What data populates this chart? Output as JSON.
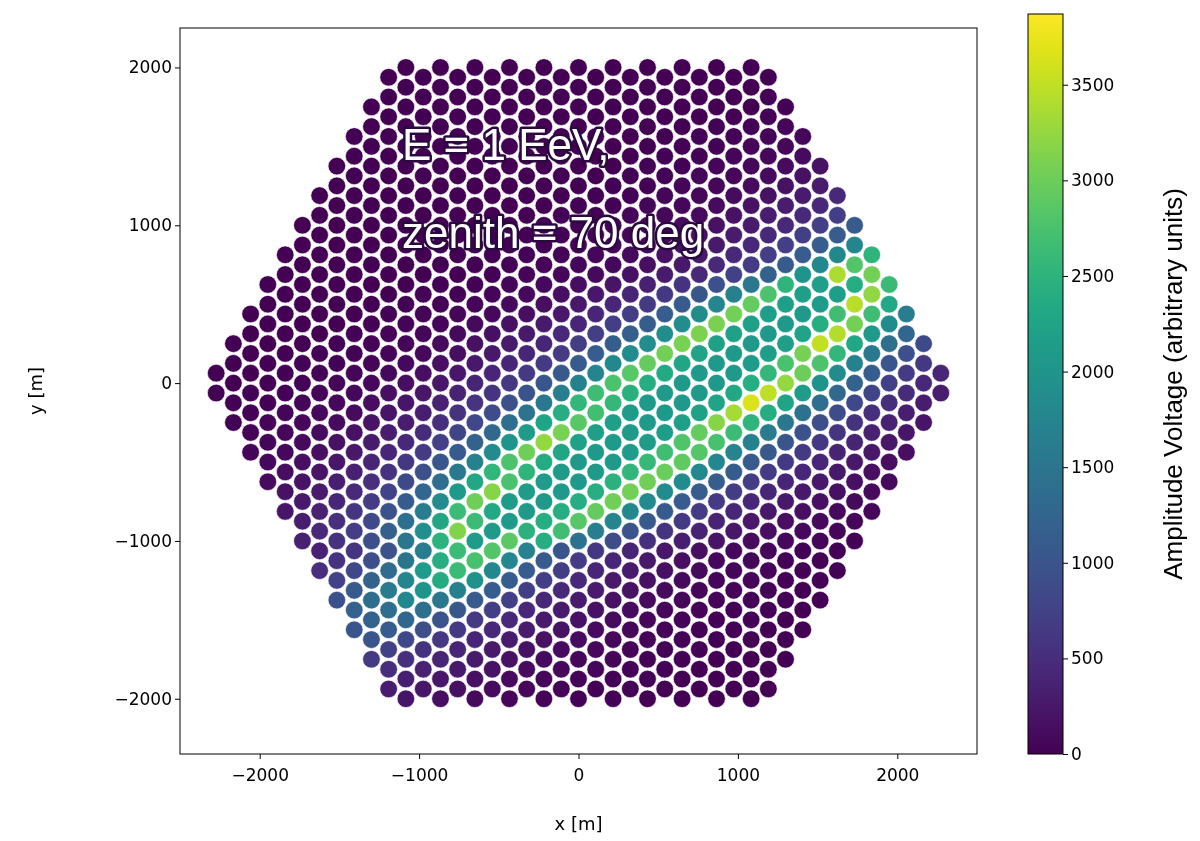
{
  "chart_data": {
    "type": "scatter",
    "xlabel": "x [m]",
    "ylabel": "y [m]",
    "clabel": "Amplitude Voltage (arbitrary units)",
    "marker": "circle",
    "annotations": [
      "E = 1 EeV,",
      "zenith = 70 deg"
    ],
    "xlim": [
      -2500,
      2500
    ],
    "ylim": [
      -2350,
      2250
    ],
    "xticks": [
      {
        "value": -2000,
        "label": "−2000"
      },
      {
        "value": -1000,
        "label": "−1000"
      },
      0,
      1000,
      2000
    ],
    "yticks": [
      {
        "value": -2000,
        "label": "−2000"
      },
      {
        "value": -1000,
        "label": "−1000"
      },
      0,
      1000,
      2000
    ],
    "clim": [
      0,
      3870
    ],
    "cticks": [
      0,
      500,
      1000,
      1500,
      2000,
      2500,
      3000,
      3500
    ],
    "x": [
      -1083,
      -866,
      -650,
      -433,
      -217,
      0,
      217,
      433,
      650,
      866,
      1083,
      -1191,
      -974,
      -758,
      -541,
      -325,
      -108,
      108,
      325,
      541,
      758,
      974,
      1191,
      -1083,
      -866,
      -650,
      -433,
      -217,
      0,
      217,
      433,
      650,
      866,
      1083,
      -1191,
      -974,
      -758,
      -541,
      -325,
      -108,
      108,
      325,
      541,
      758,
      974,
      1191,
      -1299,
      -1083,
      -866,
      -650,
      -433,
      -217,
      0,
      217,
      433,
      650,
      866,
      1083,
      1299,
      -1191,
      -974,
      -758,
      -541,
      -325,
      -108,
      108,
      325,
      541,
      758,
      974,
      1191,
      -1299,
      -1083,
      -866,
      -650,
      -433,
      -217,
      0,
      217,
      433,
      650,
      866,
      1083,
      1299,
      -1407,
      -1191,
      -974,
      -758,
      -541,
      -325,
      -108,
      108,
      325,
      541,
      758,
      974,
      1191,
      1407,
      -1299,
      -1083,
      -866,
      -650,
      -433,
      -217,
      0,
      217,
      433,
      650,
      866,
      1083,
      1299,
      -1407,
      -1191,
      -974,
      -758,
      -541,
      -325,
      -108,
      108,
      325,
      541,
      758,
      974,
      1191,
      1407,
      -1516,
      -1299,
      -1083,
      -866,
      -650,
      -433,
      -217,
      0,
      217,
      433,
      650,
      866,
      1083,
      1299,
      1516,
      -1407,
      -1191,
      -974,
      -758,
      -541,
      -325,
      -108,
      108,
      325,
      541,
      758,
      974,
      1191,
      1407,
      -1516,
      -1299,
      -1083,
      -866,
      -650,
      -433,
      -217,
      0,
      217,
      433,
      650,
      866,
      1083,
      1299,
      1516,
      -1624,
      -1407,
      -1191,
      -974,
      -758,
      -541,
      -325,
      -108,
      108,
      325,
      541,
      758,
      974,
      1191,
      1407,
      1624,
      -1516,
      -1299,
      -1083,
      -866,
      -650,
      -433,
      -217,
      0,
      217,
      433,
      650,
      866,
      1083,
      1299,
      1516,
      -1624,
      -1407,
      -1191,
      -974,
      -758,
      -541,
      -325,
      -108,
      108,
      325,
      541,
      758,
      974,
      1191,
      1407,
      1624,
      -1732,
      -1516,
      -1299,
      -1083,
      -866,
      -650,
      -433,
      -217,
      0,
      217,
      433,
      650,
      866,
      1083,
      1299,
      1516,
      1732,
      -1624,
      -1407,
      -1191,
      -974,
      -758,
      -541,
      -325,
      -108,
      108,
      325,
      541,
      758,
      974,
      1191,
      1407,
      1624,
      -1732,
      -1516,
      -1299,
      -1083,
      -866,
      -650,
      -433,
      -217,
      0,
      217,
      433,
      650,
      866,
      1083,
      1299,
      1516,
      1732,
      -1840,
      -1624,
      -1407,
      -1191,
      -974,
      -758,
      -541,
      -325,
      -108,
      108,
      325,
      541,
      758,
      974,
      1191,
      1407,
      1624,
      1840,
      -1732,
      -1516,
      -1299,
      -1083,
      -866,
      -650,
      -433,
      -217,
      0,
      217,
      433,
      650,
      866,
      1083,
      1299,
      1516,
      1732,
      -1840,
      -1624,
      -1407,
      -1191,
      -974,
      -758,
      -541,
      -325,
      -108,
      108,
      325,
      541,
      758,
      974,
      1191,
      1407,
      1624,
      1840,
      -1949,
      -1732,
      -1516,
      -1299,
      -1083,
      -866,
      -650,
      -433,
      -217,
      0,
      217,
      433,
      650,
      866,
      1083,
      1299,
      1516,
      1732,
      1949,
      -1840,
      -1624,
      -1407,
      -1191,
      -974,
      -758,
      -541,
      -325,
      -108,
      108,
      325,
      541,
      758,
      974,
      1191,
      1407,
      1624,
      1840,
      -1949,
      -1732,
      -1516,
      -1299,
      -1083,
      -866,
      -650,
      -433,
      -217,
      0,
      217,
      433,
      650,
      866,
      1083,
      1299,
      1516,
      1732,
      1949,
      -2057,
      -1840,
      -1624,
      -1407,
      -1191,
      -974,
      -758,
      -541,
      -325,
      -108,
      108,
      325,
      541,
      758,
      974,
      1191,
      1407,
      1624,
      1840,
      2057,
      -1949,
      -1732,
      -1516,
      -1299,
      -1083,
      -866,
      -650,
      -433,
      -217,
      0,
      217,
      433,
      650,
      866,
      1083,
      1299,
      1516,
      1732,
      1949,
      -2057,
      -1840,
      -1624,
      -1407,
      -1191,
      -974,
      -758,
      -541,
      -325,
      -108,
      108,
      325,
      541,
      758,
      974,
      1191,
      1407,
      1624,
      1840,
      2057,
      -2165,
      -1949,
      -1732,
      -1516,
      -1299,
      -1083,
      -866,
      -650,
      -433,
      -217,
      0,
      217,
      433,
      650,
      866,
      1083,
      1299,
      1516,
      1732,
      1949,
      2165,
      -2057,
      -1840,
      -1624,
      -1407,
      -1191,
      -974,
      -758,
      -541,
      -325,
      -108,
      108,
      325,
      541,
      758,
      974,
      1191,
      1407,
      1624,
      1840,
      2057,
      -2165,
      -1949,
      -1732,
      -1516,
      -1299,
      -1083,
      -866,
      -650,
      -433,
      -217,
      0,
      217,
      433,
      650,
      866,
      1083,
      1299,
      1516,
      1732,
      1949,
      2165,
      -2273,
      -2057,
      -1840,
      -1624,
      -1407,
      -1191,
      -974,
      -758,
      -541,
      -325,
      -108,
      108,
      325,
      541,
      758,
      974,
      1191,
      1407,
      1624,
      1840,
      2057,
      2273,
      -2165,
      -1949,
      -1732,
      -1516,
      -1299,
      -1083,
      -866,
      -650,
      -433,
      -217,
      0,
      217,
      433,
      650,
      866,
      1083,
      1299,
      1516,
      1732,
      1949,
      2165,
      -2273,
      -2057,
      -1840,
      -1624,
      -1407,
      -1191,
      -974,
      -758,
      -541,
      -325,
      -108,
      108,
      325,
      541,
      758,
      974,
      1191,
      1407,
      1624,
      1840,
      2057,
      2273,
      -2165,
      -1949,
      -1732,
      -1516,
      -1299,
      -1083,
      -866,
      -650,
      -433,
      -217,
      0,
      217,
      433,
      650,
      866,
      1083,
      1299,
      1516,
      1732,
      1949,
      2165,
      -2057,
      -1840,
      -1624,
      -1407,
      -1191,
      -974,
      -758,
      -541,
      -325,
      -108,
      108,
      325,
      541,
      758,
      974,
      1191,
      1407,
      1624,
      1840,
      2057,
      -2165,
      -1949,
      -1732,
      -1516,
      -1299,
      -1083,
      -866,
      -650,
      -433,
      -217,
      0,
      217,
      433,
      650,
      866,
      1083,
      1299,
      1516,
      1732,
      1949,
      2165,
      -2057,
      -1840,
      -1624,
      -1407,
      -1191,
      -974,
      -758,
      -541,
      -325,
      -108,
      108,
      325,
      541,
      758,
      974,
      1191,
      1407,
      1624,
      1840,
      2057,
      -1949,
      -1732,
      -1516,
      -1299,
      -1083,
      -866,
      -650,
      -433,
      -217,
      0,
      217,
      433,
      650,
      866,
      1083,
      1299,
      1516,
      1732,
      1949,
      -2057,
      -1840,
      -1624,
      -1407,
      -1191,
      -974,
      -758,
      -541,
      -325,
      -108,
      108,
      325,
      541,
      758,
      974,
      1191,
      1407,
      1624,
      1840,
      2057,
      -1949,
      -1732,
      -1516,
      -1299,
      -1083,
      -866,
      -650,
      -433,
      -217,
      0,
      217,
      433,
      650,
      866,
      1083,
      1299,
      1516,
      1732,
      1949,
      -1840,
      -1624,
      -1407,
      -1191,
      -974,
      -758,
      -541,
      -325,
      -108,
      108,
      325,
      541,
      758,
      974,
      1191,
      1407,
      1624,
      1840,
      -1949,
      -1732,
      -1516,
      -1299,
      -1083,
      -866,
      -650,
      -433,
      -217,
      0,
      217,
      433,
      650,
      866,
      1083,
      1299,
      1516,
      1732,
      1949,
      -1840,
      -1624,
      -1407,
      -1191,
      -974,
      -758,
      -541,
      -325,
      -108,
      108,
      325,
      541,
      758,
      974,
      1191,
      1407,
      1624,
      1840,
      -1732,
      -1516,
      -1299,
      -1083,
      -866,
      -650,
      -433,
      -217,
      0,
      217,
      433,
      650,
      866,
      1083,
      1299,
      1516,
      1732,
      -1840,
      -1624,
      -1407,
      -1191,
      -974,
      -758,
      -541,
      -325,
      -108,
      108,
      325,
      541,
      758,
      974,
      1191,
      1407,
      1624,
      1840,
      -1732,
      -1516,
      -1299,
      -1083,
      -866,
      -650,
      -433,
      -217,
      0,
      217,
      433,
      650,
      866,
      1083,
      1299,
      1516,
      1732,
      -1624,
      -1407,
      -1191,
      -974,
      -758,
      -541,
      -325,
      -108,
      108,
      325,
      541,
      758,
      974,
      1191,
      1407,
      1624,
      -1732,
      -1516,
      -1299,
      -1083,
      -866,
      -650,
      -433,
      -217,
      0,
      217,
      433,
      650,
      866,
      1083,
      1299,
      1516,
      1732,
      -1624,
      -1407,
      -1191,
      -974,
      -758,
      -541,
      -325,
      -108,
      108,
      325,
      541,
      758,
      974,
      1191,
      1407,
      1624,
      -1516,
      -1299,
      -1083,
      -866,
      -650,
      -433,
      -217,
      0,
      217,
      433,
      650,
      866,
      1083,
      1299,
      1516,
      -1624,
      -1407,
      -1191,
      -974,
      -758,
      -541,
      -325,
      -108,
      108,
      325,
      541,
      758,
      974,
      1191,
      1407,
      1624,
      -1516,
      -1299,
      -1083,
      -866,
      -650,
      -433,
      -217,
      0,
      217,
      433,
      650,
      866,
      1083,
      1299,
      1516,
      -1407,
      -1191,
      -974,
      -758,
      -541,
      -325,
      -108,
      108,
      325,
      541,
      758,
      974,
      1191,
      1407,
      -1516,
      -1299,
      -1083,
      -866,
      -650,
      -433,
      -217,
      0,
      217,
      433,
      650,
      866,
      1083,
      1299,
      1516,
      -1407,
      -1191,
      -974,
      -758,
      -541,
      -325,
      -108,
      108,
      325,
      541,
      758,
      974,
      1191,
      1407,
      -1299,
      -1083,
      -866,
      -650,
      -433,
      -217,
      0,
      217,
      433,
      650,
      866,
      1083,
      1299,
      -1407,
      -1191,
      -974,
      -758,
      -541,
      -325,
      -108,
      108,
      325,
      541,
      758,
      974,
      1191,
      1407,
      -1299,
      -1083,
      -866,
      -650,
      -433,
      -217,
      0,
      217,
      433,
      650,
      866,
      1083,
      1299,
      -1191,
      -974,
      -758,
      -541,
      -325,
      -108,
      108,
      325,
      541,
      758,
      974,
      1191,
      -1299,
      -1083,
      -866,
      -650,
      -433,
      -217,
      0,
      217,
      433,
      650,
      866,
      1083,
      1299,
      -1191,
      -974,
      -758,
      -541,
      -325,
      -108,
      108,
      325,
      541,
      758,
      974,
      1191,
      -1083,
      -866,
      -650,
      -433,
      -217,
      0,
      217,
      433,
      650,
      866,
      1083,
      -1191,
      -974,
      -758,
      -541,
      -325,
      -108,
      108,
      325,
      541,
      758,
      974,
      1191,
      -1083,
      -866,
      -650,
      -433,
      -217,
      0,
      217,
      433,
      650,
      866,
      1083
    ],
    "values": [
      2000,
      2000,
      2000,
      2000,
      2000,
      2000,
      2000,
      2000,
      2000,
      2000,
      2000,
      1938,
      1938,
      1938,
      1938,
      1938,
      1938,
      1938,
      1938,
      1938,
      1938,
      1938,
      1938,
      1875,
      1875,
      1875,
      1875,
      1875,
      1875,
      1875,
      1875,
      1875,
      1875,
      1875,
      1813,
      1813,
      1813,
      1813,
      1813,
      1813,
      1813,
      1813,
      1813,
      1813,
      1813,
      1813,
      1750,
      1750,
      1750,
      1750,
      1750,
      1750,
      1750,
      1750,
      1750,
      1750,
      1750,
      1750,
      1750,
      1688,
      1688,
      1688,
      1688,
      1688,
      1688,
      1688,
      1688,
      1688,
      1688,
      1688,
      1688,
      1625,
      1625,
      1625,
      1625,
      1625,
      1625,
      1625,
      1625,
      1625,
      1625,
      1625,
      1625,
      1625,
      1563,
      1563,
      1563,
      1563,
      1563,
      1563,
      1563,
      1563,
      1563,
      1563,
      1563,
      1563,
      1563,
      1563,
      1500,
      1500,
      1500,
      1500,
      1500,
      1500,
      1500,
      1500,
      1500,
      1500,
      1500,
      1500,
      1500,
      1438,
      1438,
      1438,
      1438,
      1438,
      1438,
      1438,
      1438,
      1438,
      1438,
      1438,
      1438,
      1438,
      1438,
      1375,
      1375,
      1375,
      1375,
      1375,
      1375,
      1375,
      1375,
      1375,
      1375,
      1375,
      1375,
      1375,
      1375,
      1375,
      1313,
      1313,
      1313,
      1313,
      1313,
      1313,
      1313,
      1313,
      1313,
      1313,
      1313,
      1313,
      1313,
      1313,
      1250,
      1250,
      1250,
      1250,
      1250,
      1250,
      1250,
      1250,
      1250,
      1250,
      1250,
      1250,
      1250,
      1250,
      1250,
      1188,
      1188,
      1188,
      1188,
      1188,
      1188,
      1188,
      1188,
      1188,
      1188,
      1188,
      1188,
      1188,
      1188,
      1188,
      1188,
      1125,
      1125,
      1125,
      1125,
      1125,
      1125,
      1125,
      1125,
      1125,
      1125,
      1125,
      1125,
      1125,
      1125,
      1125,
      1063,
      1063,
      1063,
      1063,
      1063,
      1063,
      1063,
      1063,
      1063,
      1063,
      1063,
      1063,
      1063,
      1063,
      1063,
      1063,
      1000,
      1000,
      1000,
      1000,
      1000,
      1000,
      1000,
      1000,
      1000,
      1000,
      1000,
      1000,
      1000,
      1000,
      1000,
      1000,
      1000,
      938,
      938,
      938,
      938,
      938,
      938,
      938,
      938,
      938,
      938,
      938,
      938,
      938,
      938,
      938,
      938,
      875,
      875,
      875,
      875,
      875,
      875,
      875,
      875,
      875,
      875,
      875,
      875,
      875,
      875,
      875,
      875,
      875,
      813,
      813,
      813,
      813,
      813,
      813,
      813,
      813,
      813,
      813,
      813,
      813,
      813,
      813,
      813,
      813,
      813,
      813,
      750,
      750,
      750,
      750,
      750,
      750,
      750,
      750,
      750,
      750,
      750,
      750,
      750,
      750,
      750,
      750,
      750,
      688,
      688,
      688,
      688,
      688,
      688,
      688,
      688,
      688,
      688,
      688,
      688,
      688,
      688,
      688,
      688,
      688,
      688,
      625,
      625,
      625,
      625,
      625,
      625,
      625,
      625,
      625,
      625,
      625,
      625,
      625,
      625,
      625,
      625,
      625,
      625,
      625,
      563,
      563,
      563,
      563,
      563,
      563,
      563,
      563,
      563,
      563,
      563,
      563,
      563,
      563,
      563,
      563,
      563,
      563,
      500,
      500,
      500,
      500,
      500,
      500,
      500,
      500,
      500,
      500,
      500,
      500,
      500,
      500,
      500,
      500,
      500,
      500,
      500,
      438,
      438,
      438,
      438,
      438,
      438,
      438,
      438,
      438,
      438,
      438,
      438,
      438,
      438,
      438,
      438,
      438,
      438,
      438,
      438,
      375,
      375,
      375,
      375,
      375,
      375,
      375,
      375,
      375,
      375,
      375,
      375,
      375,
      375,
      375,
      375,
      375,
      375,
      375,
      313,
      313,
      313,
      313,
      313,
      313,
      313,
      313,
      313,
      313,
      313,
      313,
      313,
      313,
      313,
      313,
      313,
      313,
      313,
      313,
      250,
      250,
      250,
      250,
      250,
      250,
      250,
      250,
      250,
      250,
      250,
      250,
      250,
      250,
      250,
      250,
      250,
      250,
      250,
      250,
      250,
      188,
      188,
      188,
      188,
      188,
      188,
      188,
      188,
      188,
      188,
      188,
      188,
      188,
      188,
      188,
      188,
      188,
      188,
      188,
      188,
      125,
      125,
      125,
      125,
      125,
      125,
      125,
      125,
      125,
      125,
      125,
      125,
      125,
      125,
      125,
      125,
      125,
      125,
      125,
      125,
      125,
      63,
      63,
      63,
      63,
      63,
      63,
      63,
      63,
      63,
      63,
      63,
      63,
      63,
      63,
      63,
      63,
      63,
      63,
      63,
      63,
      63,
      63,
      0,
      0,
      0,
      0,
      0,
      0,
      0,
      0,
      0,
      0,
      0,
      0,
      0,
      0,
      0,
      0,
      0,
      0,
      0,
      0,
      0,
      -63,
      -63,
      -63,
      -63,
      -63,
      -63,
      -63,
      -63,
      -63,
      -63,
      -63,
      -63,
      -63,
      -63,
      -63,
      -63,
      -63,
      -63,
      -63,
      -63,
      -63,
      -63,
      -125,
      -125,
      -125,
      -125,
      -125,
      -125,
      -125,
      -125,
      -125,
      -125,
      -125,
      -125,
      -125,
      -125,
      -125,
      -125,
      -125,
      -125,
      -125,
      -125,
      -125,
      -188,
      -188,
      -188,
      -188,
      -188,
      -188,
      -188,
      -188,
      -188,
      -188,
      -188,
      -188,
      -188,
      -188,
      -188,
      -188,
      -188,
      -188,
      -188,
      -188,
      -250,
      -250,
      -250,
      -250,
      -250,
      -250,
      -250,
      -250,
      -250,
      -250,
      -250,
      -250,
      -250,
      -250,
      -250,
      -250,
      -250,
      -250,
      -250,
      -250,
      -250,
      -313,
      -313,
      -313,
      -313,
      -313,
      -313,
      -313,
      -313,
      -313,
      -313,
      -313,
      -313,
      -313,
      -313,
      -313,
      -313,
      -313,
      -313,
      -313,
      -313,
      -375,
      -375,
      -375,
      -375,
      -375,
      -375,
      -375,
      -375,
      -375,
      -375,
      -375,
      -375,
      -375,
      -375,
      -375,
      -375,
      -375,
      -375,
      -375,
      -438,
      -438,
      -438,
      -438,
      -438,
      -438,
      -438,
      -438,
      -438,
      -438,
      -438,
      -438,
      -438,
      -438,
      -438,
      -438,
      -438,
      -438,
      -438,
      -438,
      -500,
      -500,
      -500,
      -500,
      -500,
      -500,
      -500,
      -500,
      -500,
      -500,
      -500,
      -500,
      -500,
      -500,
      -500,
      -500,
      -500,
      -500,
      -500,
      -563,
      -563,
      -563,
      -563,
      -563,
      -563,
      -563,
      -563,
      -563,
      -563,
      -563,
      -563,
      -563,
      -563,
      -563,
      -563,
      -563,
      -563,
      -625,
      -625,
      -625,
      -625,
      -625,
      -625,
      -625,
      -625,
      -625,
      -625,
      -625,
      -625,
      -625,
      -625,
      -625,
      -625,
      -625,
      -625,
      -625,
      -688,
      -688,
      -688,
      -688,
      -688,
      -688,
      -688,
      -688,
      -688,
      -688,
      -688,
      -688,
      -688,
      -688,
      -688,
      -688,
      -688,
      -688,
      -750,
      -750,
      -750,
      -750,
      -750,
      -750,
      -750,
      -750,
      -750,
      -750,
      -750,
      -750,
      -750,
      -750,
      -750,
      -750,
      -750,
      -813,
      -813,
      -813,
      -813,
      -813,
      -813,
      -813,
      -813,
      -813,
      -813,
      -813,
      -813,
      -813,
      -813,
      -813,
      -813,
      -813,
      -813,
      -875,
      -875,
      -875,
      -875,
      -875,
      -875,
      -875,
      -875,
      -875,
      -875,
      -875,
      -875,
      -875,
      -875,
      -875,
      -875,
      -875,
      -938,
      -938,
      -938,
      -938,
      -938,
      -938,
      -938,
      -938,
      -938,
      -938,
      -938,
      -938,
      -938,
      -938,
      -938,
      -938,
      -1000,
      -1000,
      -1000,
      -1000,
      -1000,
      -1000,
      -1000,
      -1000,
      -1000,
      -1000,
      -1000,
      -1000,
      -1000,
      -1000,
      -1000,
      -1000,
      -1000,
      -1063,
      -1063,
      -1063,
      -1063,
      -1063,
      -1063,
      -1063,
      -1063,
      -1063,
      -1063,
      -1063,
      -1063,
      -1063,
      -1063,
      -1063,
      -1063,
      -1125,
      -1125,
      -1125,
      -1125,
      -1125,
      -1125,
      -1125,
      -1125,
      -1125,
      -1125,
      -1125,
      -1125,
      -1125,
      -1125,
      -1125,
      -1188,
      -1188,
      -1188,
      -1188,
      -1188,
      -1188,
      -1188,
      -1188,
      -1188,
      -1188,
      -1188,
      -1188,
      -1188,
      -1188,
      -1188,
      -1188,
      -1250,
      -1250,
      -1250,
      -1250,
      -1250,
      -1250,
      -1250,
      -1250,
      -1250,
      -1250,
      -1250,
      -1250,
      -1250,
      -1250,
      -1250,
      -1313,
      -1313,
      -1313,
      -1313,
      -1313,
      -1313,
      -1313,
      -1313,
      -1313,
      -1313,
      -1313,
      -1313,
      -1313,
      -1313,
      -1375,
      -1375,
      -1375,
      -1375,
      -1375,
      -1375,
      -1375,
      -1375,
      -1375,
      -1375,
      -1375,
      -1375,
      -1375,
      -1375,
      -1375,
      -1438,
      -1438,
      -1438,
      -1438,
      -1438,
      -1438,
      -1438,
      -1438,
      -1438,
      -1438,
      -1438,
      -1438,
      -1438,
      -1438,
      -1500,
      -1500,
      -1500,
      -1500,
      -1500,
      -1500,
      -1500,
      -1500,
      -1500,
      -1500,
      -1500,
      -1500,
      -1500,
      -1563,
      -1563,
      -1563,
      -1563,
      -1563,
      -1563,
      -1563,
      -1563,
      -1563,
      -1563,
      -1563,
      -1563,
      -1563,
      -1563,
      -1625,
      -1625,
      -1625,
      -1625,
      -1625,
      -1625,
      -1625,
      -1625,
      -1625,
      -1625,
      -1625,
      -1625,
      -1625,
      -1688,
      -1688,
      -1688,
      -1688,
      -1688,
      -1688,
      -1688,
      -1688,
      -1688,
      -1688,
      -1688,
      -1688,
      -1750,
      -1750,
      -1750,
      -1750,
      -1750,
      -1750,
      -1750,
      -1750,
      -1750,
      -1750,
      -1750,
      -1750,
      -1750,
      -1813,
      -1813,
      -1813,
      -1813,
      -1813,
      -1813,
      -1813,
      -1813,
      -1813,
      -1813,
      -1813,
      -1813,
      -1875,
      -1875,
      -1875,
      -1875,
      -1875,
      -1875,
      -1875,
      -1875,
      -1875,
      -1875,
      -1875,
      -1938,
      -1938,
      -1938,
      -1938,
      -1938,
      -1938,
      -1938,
      -1938,
      -1938,
      -1938,
      -1938,
      -1938,
      -2000,
      -2000,
      -2000,
      -2000,
      -2000,
      -2000,
      -2000,
      -2000,
      -2000,
      -2000,
      -2000
    ],
    "cvalues": [
      0,
      0,
      0,
      0,
      0,
      0,
      0,
      0,
      0,
      5,
      10,
      0,
      0,
      0,
      0,
      0,
      0,
      0,
      0,
      0,
      0,
      5,
      10,
      0,
      0,
      0,
      0,
      0,
      0,
      0,
      0,
      0,
      5,
      10,
      0,
      0,
      0,
      0,
      0,
      0,
      0,
      0,
      0,
      5,
      10,
      20,
      0,
      0,
      0,
      0,
      0,
      0,
      0,
      0,
      0,
      0,
      5,
      10,
      20,
      0,
      0,
      0,
      0,
      0,
      0,
      0,
      0,
      5,
      10,
      20,
      30,
      0,
      0,
      0,
      0,
      0,
      0,
      0,
      0,
      5,
      10,
      20,
      30,
      40,
      0,
      0,
      0,
      0,
      0,
      0,
      0,
      0,
      5,
      10,
      20,
      30,
      40,
      70,
      0,
      0,
      0,
      0,
      0,
      0,
      0,
      5,
      10,
      20,
      30,
      50,
      70,
      0,
      0,
      0,
      0,
      0,
      0,
      0,
      5,
      10,
      20,
      30,
      50,
      70,
      110,
      0,
      0,
      0,
      0,
      0,
      0,
      0,
      5,
      10,
      20,
      30,
      50,
      70,
      110,
      170,
      0,
      0,
      0,
      0,
      0,
      0,
      5,
      10,
      20,
      30,
      50,
      70,
      110,
      180,
      0,
      0,
      0,
      0,
      0,
      0,
      5,
      10,
      20,
      30,
      50,
      70,
      120,
      180,
      280,
      0,
      0,
      0,
      0,
      0,
      0,
      5,
      10,
      20,
      30,
      50,
      70,
      120,
      180,
      280,
      440,
      0,
      0,
      0,
      0,
      0,
      5,
      10,
      20,
      30,
      50,
      70,
      110,
      180,
      290,
      440,
      0,
      0,
      0,
      0,
      0,
      5,
      10,
      20,
      30,
      50,
      70,
      110,
      180,
      290,
      450,
      700,
      0,
      0,
      0,
      0,
      0,
      5,
      10,
      20,
      30,
      50,
      70,
      110,
      180,
      280,
      450,
      710,
      1090,
      0,
      0,
      0,
      0,
      5,
      10,
      20,
      30,
      40,
      70,
      110,
      170,
      280,
      450,
      720,
      1130,
      0,
      0,
      0,
      0,
      5,
      10,
      20,
      30,
      40,
      70,
      110,
      170,
      270,
      440,
      710,
      1140,
      1760,
      0,
      0,
      0,
      0,
      5,
      10,
      20,
      30,
      40,
      70,
      100,
      160,
      260,
      430,
      700,
      1130,
      1810,
      2520,
      0,
      0,
      0,
      5,
      10,
      20,
      30,
      40,
      60,
      90,
      150,
      250,
      430,
      670,
      1100,
      1810,
      2820,
      0,
      0,
      0,
      5,
      10,
      10,
      20,
      40,
      60,
      100,
      170,
      280,
      450,
      740,
      1220,
      2000,
      3400,
      3050,
      0,
      0,
      5,
      10,
      10,
      20,
      30,
      50,
      80,
      130,
      210,
      350,
      570,
      940,
      1540,
      2520,
      2160,
      2400,
      2620,
      0,
      5,
      10,
      10,
      20,
      30,
      50,
      90,
      140,
      230,
      380,
      630,
      1030,
      1690,
      2780,
      2150,
      2140,
      3220,
      0,
      5,
      10,
      10,
      20,
      30,
      60,
      90,
      150,
      250,
      400,
      660,
      1090,
      1780,
      2940,
      2150,
      2110,
      3460,
      2320,
      0,
      5,
      10,
      10,
      20,
      40,
      60,
      90,
      150,
      250,
      420,
      690,
      1120,
      1860,
      3040,
      2160,
      2100,
      2690,
      2670,
      1620,
      5,
      10,
      10,
      20,
      40,
      60,
      100,
      160,
      260,
      420,
      700,
      1140,
      1880,
      3090,
      2180,
      2100,
      2390,
      3040,
      1850,
      5,
      10,
      10,
      20,
      40,
      60,
      100,
      160,
      260,
      430,
      700,
      1150,
      1890,
      3100,
      2200,
      2100,
      2250,
      3420,
      2080,
      1260,
      5,
      10,
      10,
      20,
      40,
      60,
      100,
      160,
      260,
      420,
      690,
      1140,
      1880,
      3080,
      2220,
      2100,
      2170,
      3520,
      2310,
      1400,
      860,
      10,
      10,
      20,
      30,
      60,
      90,
      150,
      250,
      410,
      680,
      1120,
      1850,
      3040,
      2250,
      2100,
      2140,
      3060,
      2540,
      1550,
      940,
      10,
      10,
      20,
      30,
      60,
      90,
      150,
      250,
      410,
      670,
      1090,
      1800,
      2960,
      2290,
      2100,
      2120,
      2760,
      2780,
      1690,
      1030,
      630,
      10,
      10,
      20,
      30,
      50,
      90,
      150,
      240,
      400,
      650,
      1060,
      1750,
      2860,
      2330,
      2100,
      2100,
      2550,
      3000,
      1840,
      1120,
      680,
      420,
      10,
      20,
      30,
      50,
      90,
      140,
      230,
      380,
      630,
      1030,
      1690,
      2780,
      2390,
      2100,
      2100,
      2400,
      3240,
      1980,
      1210,
      740,
      450,
      10,
      20,
      30,
      50,
      80,
      140,
      230,
      370,
      600,
      990,
      1620,
      2670,
      2460,
      2100,
      2100,
      2310,
      3480,
      2120,
      1290,
      790,
      480,
      290,
      20,
      30,
      50,
      80,
      130,
      220,
      350,
      580,
      950,
      1550,
      2540,
      2570,
      2100,
      2100,
      2250,
      3650,
      2260,
      1380,
      840,
      510,
      310,
      30,
      50,
      80,
      120,
      200,
      330,
      550,
      890,
      1470,
      2410,
      2700,
      2120,
      2100,
      2200,
      3350,
      2400,
      1460,
      890,
      540,
      330,
      30,
      40,
      70,
      120,
      190,
      310,
      510,
      840,
      1380,
      2260,
      2860,
      2150,
      2100,
      2170,
      3160,
      2520,
      1530,
      930,
      570,
      350,
      210,
      40,
      70,
      110,
      180,
      290,
      480,
      790,
      1290,
      2130,
      3070,
      2170,
      2100,
      2140,
      2940,
      2640,
      1610,
      980,
      600,
      360,
      220,
      60,
      100,
      170,
      270,
      450,
      740,
      1210,
      2000,
      3250,
      2220,
      2100,
      2130,
      2800,
      2750,
      1680,
      1020,
      620,
      380,
      230,
      60,
      90,
      150,
      250,
      410,
      680,
      1100,
      1830,
      3020,
      2280,
      2100,
      2110,
      2690,
      2840,
      1740,
      1060,
      650,
      390,
      240,
      150,
      90,
      140,
      230,
      380,
      630,
      1030,
      1690,
      2770,
      2370,
      2100,
      2100,
      2600,
      2930,
      1780,
      1090,
      660,
      400,
      250,
      150,
      130,
      210,
      350,
      570,
      940,
      1550,
      2540,
      2520,
      2100,
      2100,
      2530,
      2980,
      1820,
      1110,
      680,
      410,
      250,
      150,
      120,
      190,
      320,
      520,
      850,
      1390,
      2300,
      2760,
      2110,
      2100,
      2470,
      3030,
      1850,
      1130,
      690,
      420,
      250,
      160,
      100,
      170,
      280,
      460,
      770,
      1260,
      2080,
      3170,
      2130,
      2100,
      2420,
      3040,
      1850,
      1130,
      690,
      420,
      250,
      160,
      100,
      250,
      410,
      680,
      1110,
      1830,
      3020,
      2130,
      2100,
      2390,
      3030,
      1840,
      1120,
      680,
      420,
      250,
      160,
      100,
      220,
      360,
      600,
      980,
      1610,
      2640,
      2320,
      2100,
      2390,
      2960,
      1800,
      1090,
      670,
      410,
      250,
      150,
      90,
      60,
      310,
      520,
      840,
      1380,
      2270,
      2640,
      2100,
      2390,
      2850,
      1740,
      1060,
      650,
      390,
      240,
      150,
      90,
      60,
      430,
      710,
      1160,
      1910,
      3140,
      2100,
      2470,
      2680,
      1630,
      990,
      600,
      370,
      230,
      140,
      90,
      50,
      340,
      570,
      930,
      1520,
      2490,
      2130,
      2900,
      2400,
      1460,
      890,
      540,
      330,
      200,
      120,
      80,
      50,
      30,
      360,
      600,
      980,
      1610,
      2640,
      2820,
      1710,
      1040,
      630,
      390,
      240,
      140,
      90,
      50,
      30,
      20,
      560,
      920,
      1490,
      2410,
      2750,
      1780,
      1090,
      670,
      410,
      250,
      150,
      90,
      60,
      30,
      20,
      520,
      840,
      1360,
      2110,
      2640,
      1800,
      1130,
      690,
      420,
      260,
      160,
      100,
      60,
      40,
      20,
      20,
      770,
      1220,
      1760,
      2360,
      1940,
      1130,
      710,
      430,
      270,
      170,
      100,
      60,
      40,
      20,
      20,
      1090,
      1590,
      2000,
      1670,
      1130,
      720,
      440,
      280,
      170,
      100,
      60,
      40,
      20,
      10,
      960,
      1370,
      1800,
      1550,
      1090,
      710,
      450,
      280,
      170,
      110,
      70,
      40,
      30,
      20,
      10,
      1180,
      1390,
      1410,
      1050,
      700,
      450,
      280,
      180,
      110,
      70,
      40,
      30,
      20,
      10,
      1200,
      1270,
      980,
      680,
      440,
      280,
      180,
      110,
      70,
      40,
      30,
      20,
      10,
      1040,
      1130,
      910,
      650,
      430,
      280,
      180,
      110,
      70,
      40,
      30,
      20,
      10,
      10,
      1000,
      840,
      610,
      420,
      280,
      180,
      110,
      70,
      40,
      30,
      20,
      10,
      10,
      750,
      570,
      400,
      270,
      180,
      110,
      70,
      40,
      30,
      20,
      10,
      10,
      680,
      530,
      380,
      260,
      180,
      110,
      70,
      50,
      30,
      20,
      10,
      10,
      5,
      490,
      360,
      250,
      170,
      110,
      70,
      50,
      30,
      20,
      10,
      10,
      5,
      340,
      240,
      160,
      110,
      70,
      40,
      30,
      20,
      10,
      10,
      5,
      310,
      230,
      160,
      110,
      70,
      40,
      30,
      20,
      10,
      10,
      5,
      5,
      210,
      150,
      100,
      70,
      40,
      30,
      20,
      10,
      10,
      5,
      5
    ]
  }
}
